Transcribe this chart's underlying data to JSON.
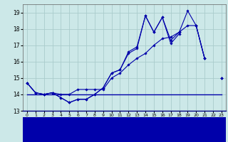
{
  "bg_color": "#cce8e8",
  "grid_color": "#aacccc",
  "line_color": "#0000aa",
  "ylim": [
    13.0,
    19.5
  ],
  "xlim": [
    -0.5,
    23.5
  ],
  "yticks": [
    13,
    14,
    15,
    16,
    17,
    18,
    19
  ],
  "xticks": [
    0,
    1,
    2,
    3,
    4,
    5,
    6,
    7,
    8,
    9,
    10,
    11,
    12,
    13,
    14,
    15,
    16,
    17,
    18,
    19,
    20,
    21,
    22,
    23
  ],
  "hours": [
    0,
    1,
    2,
    3,
    4,
    5,
    6,
    7,
    8,
    9,
    10,
    11,
    12,
    13,
    14,
    15,
    16,
    17,
    18,
    19,
    20,
    21,
    22,
    23
  ],
  "line1": [
    14.7,
    14.1,
    14.0,
    14.1,
    13.8,
    13.5,
    13.7,
    13.7,
    14.0,
    14.4,
    15.3,
    15.5,
    16.5,
    16.8,
    18.8,
    17.8,
    18.7,
    17.1,
    17.7,
    null,
    18.2,
    16.2,
    null,
    15.0
  ],
  "line2": [
    14.7,
    14.1,
    14.0,
    14.1,
    13.8,
    13.5,
    13.7,
    13.7,
    14.0,
    14.4,
    15.3,
    15.5,
    16.6,
    16.9,
    18.8,
    17.8,
    18.7,
    17.3,
    17.8,
    19.1,
    18.2,
    16.2,
    null,
    15.0
  ],
  "line3": [
    14.7,
    14.1,
    14.0,
    14.1,
    14.0,
    14.0,
    14.3,
    14.3,
    14.3,
    14.3,
    15.0,
    15.3,
    15.8,
    16.2,
    16.5,
    17.0,
    17.4,
    17.5,
    17.8,
    18.2,
    18.2,
    16.2,
    null,
    15.0
  ],
  "line_flat": [
    14.0,
    14.0,
    14.0,
    14.0,
    14.0,
    14.0,
    14.0,
    14.0,
    14.0,
    14.0,
    14.0,
    14.0,
    14.0,
    14.0,
    14.0,
    14.0,
    14.0,
    14.0,
    14.0,
    14.0,
    14.0,
    14.0,
    14.0,
    14.0
  ]
}
